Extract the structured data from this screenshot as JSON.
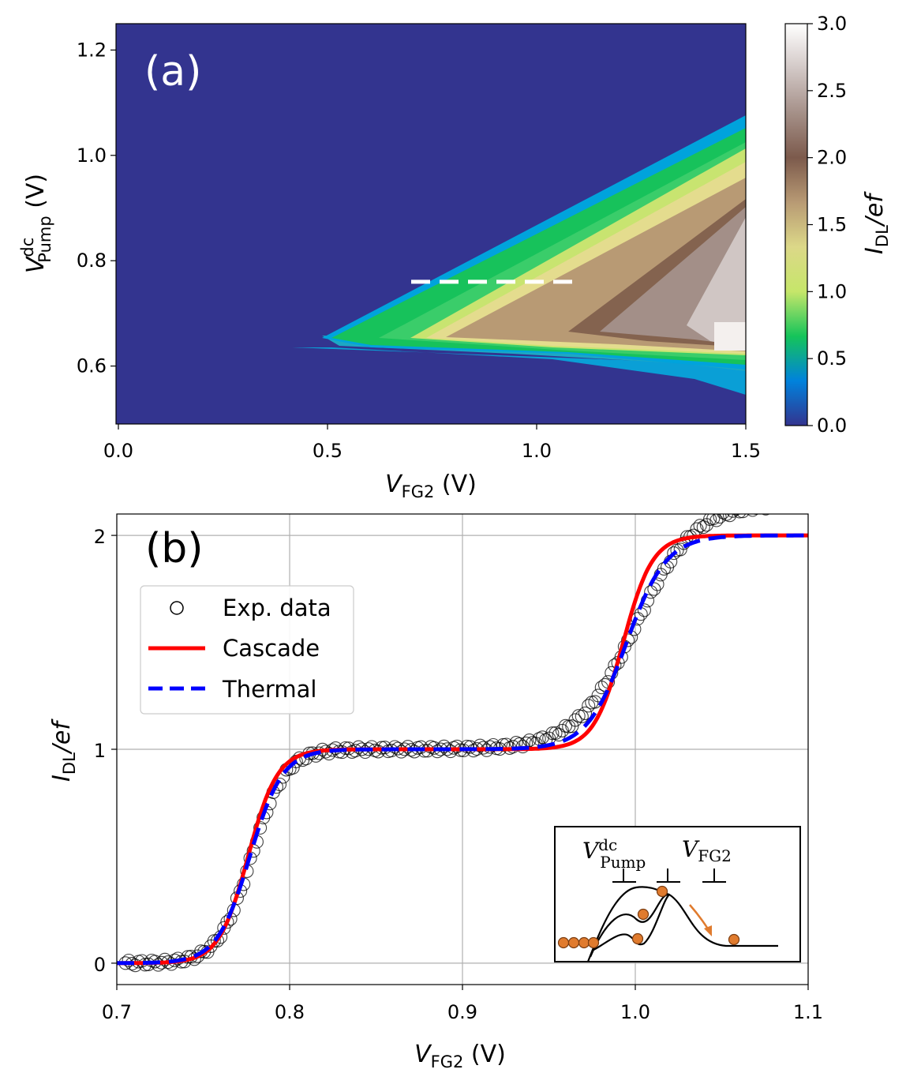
{
  "chart_data": [
    {
      "type": "heatmap",
      "panel_label": "(a)",
      "xlabel": {
        "main": "V",
        "sub": "FG2",
        "unit": " (V)"
      },
      "ylabel": {
        "main": "V",
        "sup": "dc",
        "sub": "Pump",
        "unit": " (V)"
      },
      "xlim": [
        0.0,
        1.5
      ],
      "ylim": [
        0.49,
        1.25
      ],
      "xticks": [
        "0.0",
        "0.5",
        "1.0",
        "1.5"
      ],
      "yticks": [
        "0.6",
        "0.8",
        "1.0",
        "1.2"
      ],
      "colorbar": {
        "label": {
          "main": "I",
          "sub": "DL",
          "unit": "/ef"
        },
        "range": [
          0.0,
          3.0
        ],
        "ticks": [
          "0.0",
          "0.5",
          "1.0",
          "1.5",
          "2.0",
          "2.5",
          "3.0"
        ],
        "colors": [
          "#33348f",
          "#0082dc",
          "#15c45a",
          "#c6e66a",
          "#dcd888",
          "#b89a74",
          "#7c5a4c",
          "#a59088",
          "#d2c8c6",
          "#ffffff"
        ]
      },
      "regions": {
        "plateau_1_left_apex": [
          0.5,
          0.665
        ],
        "plateau_2_apex": [
          0.72,
          0.665
        ],
        "upper_edge_end": [
          1.5,
          1.07
        ],
        "lower_edge_end": [
          1.5,
          0.58
        ]
      },
      "dashed_line": {
        "x": [
          0.7,
          1.1
        ],
        "y": 0.76,
        "color": "#ffffff"
      }
    },
    {
      "type": "line",
      "panel_label": "(b)",
      "xlabel": {
        "main": "V",
        "sub": "FG2",
        "unit": " (V)"
      },
      "ylabel": {
        "main": "I",
        "sub": "DL",
        "unit": "/ef"
      },
      "xlim": [
        0.7,
        1.1
      ],
      "ylim": [
        -0.1,
        2.1
      ],
      "xticks": [
        "0.7",
        "0.8",
        "0.9",
        "1.0",
        "1.1"
      ],
      "yticks": [
        "0",
        "1",
        "2"
      ],
      "grid": true,
      "legend_position": "upper-left",
      "series": [
        {
          "name": "Exp. data",
          "style": "open-circles",
          "color": "#000000",
          "model": {
            "steps": [
              {
                "center": 0.778,
                "width": 0.0095,
                "height": 1.0
              },
              {
                "center": 1.0,
                "width": 0.017,
                "height": 1.15
              }
            ]
          }
        },
        {
          "name": "Cascade",
          "style": "solid",
          "color": "#ff0000",
          "model": {
            "steps": [
              {
                "center": 0.776,
                "width": 0.0085,
                "height": 1.0
              },
              {
                "center": 0.993,
                "width": 0.0085,
                "height": 1.0
              }
            ]
          }
        },
        {
          "name": "Thermal",
          "style": "dashed",
          "color": "#0000ff",
          "model": {
            "steps": [
              {
                "center": 0.777,
                "width": 0.0095,
                "height": 1.0
              },
              {
                "center": 0.995,
                "width": 0.0115,
                "height": 1.0
              }
            ]
          }
        }
      ],
      "inset": {
        "label_pump": {
          "main": "V",
          "sup": "dc",
          "sub": "Pump"
        },
        "label_fg2": {
          "main": "V",
          "sub": "FG2"
        },
        "electron_color": "#e07b2e"
      }
    }
  ]
}
